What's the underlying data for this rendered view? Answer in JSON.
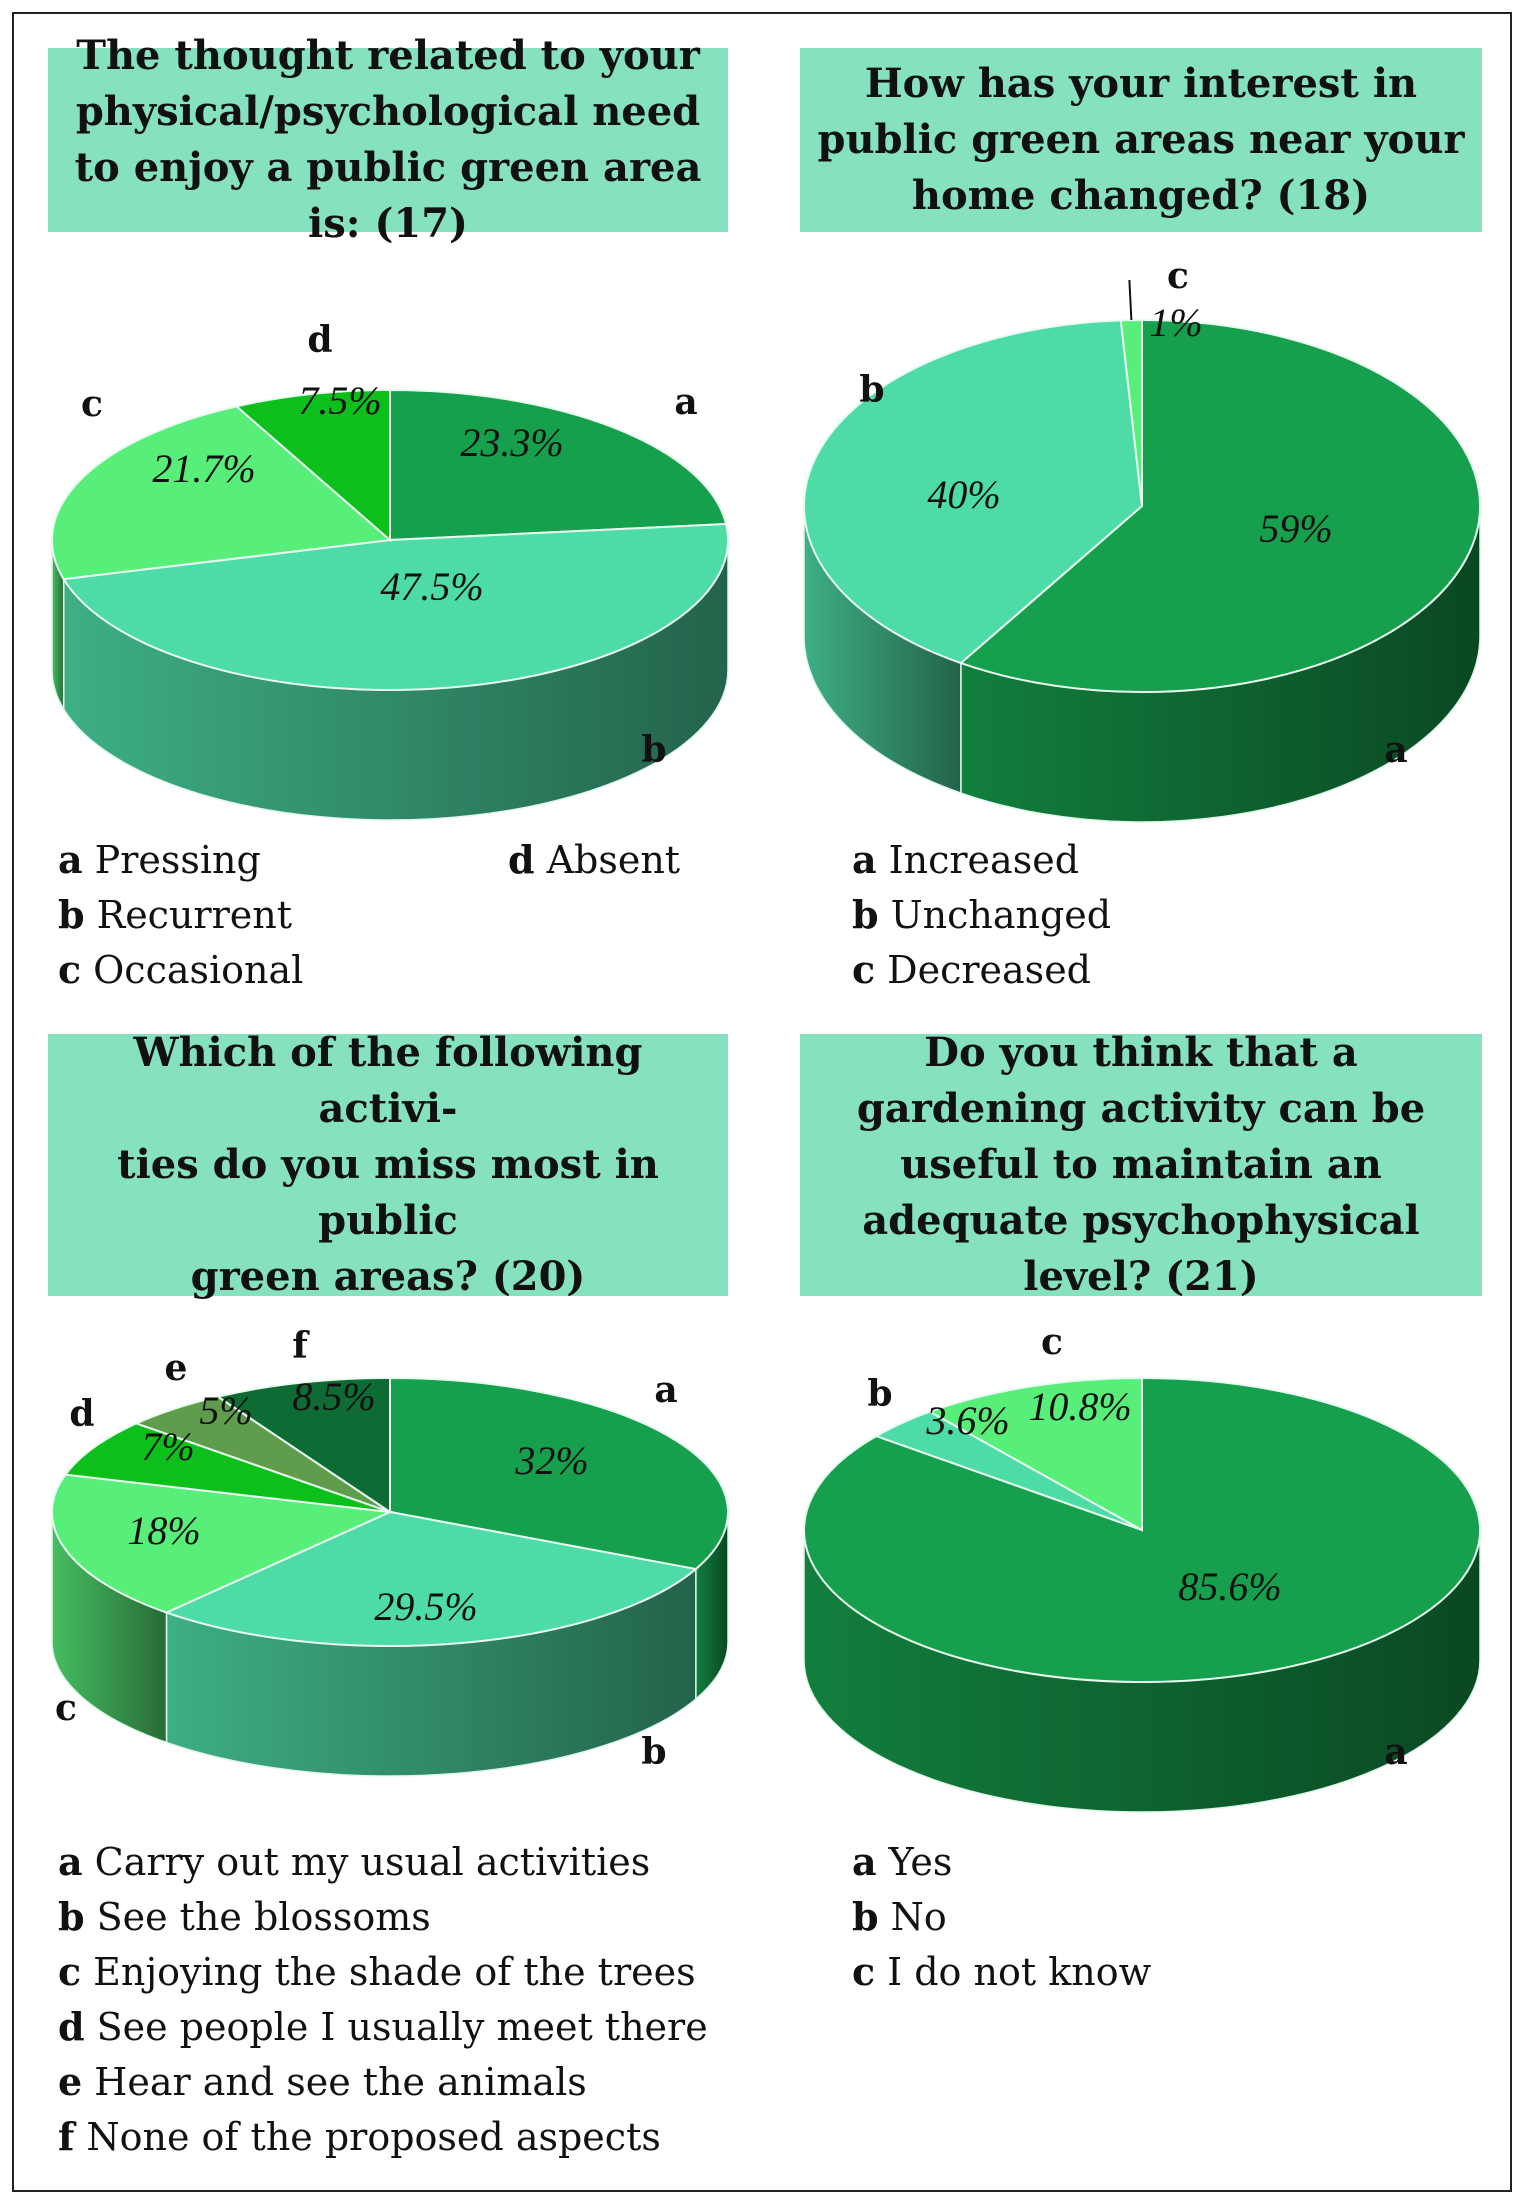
{
  "chart_data": [
    {
      "type": "pie",
      "title": "The thought related to your physical/psychological need to enjoy a public green area is: (17)",
      "slices": [
        {
          "key": "a",
          "label": "Pressing",
          "value": 23.3,
          "display": "23.3%",
          "color": "#169f4c"
        },
        {
          "key": "b",
          "label": "Recurrent",
          "value": 47.5,
          "display": "47.5%",
          "color": "#4ddba6"
        },
        {
          "key": "c",
          "label": "Occasional",
          "value": 21.7,
          "display": "21.7%",
          "color": "#57ee79"
        },
        {
          "key": "d",
          "label": "Absent",
          "value": 7.5,
          "display": "7.5%",
          "color": "#0dbf1b"
        }
      ]
    },
    {
      "type": "pie",
      "title": "How has your interest in public green areas near your home changed? (18)",
      "slices": [
        {
          "key": "a",
          "label": "Increased",
          "value": 59,
          "display": "59%",
          "color": "#169f4c"
        },
        {
          "key": "b",
          "label": "Unchanged",
          "value": 40,
          "display": "40%",
          "color": "#4ddba6"
        },
        {
          "key": "c",
          "label": "Decreased",
          "value": 1,
          "display": "1%",
          "color": "#57ee79"
        }
      ]
    },
    {
      "type": "pie",
      "title": "Which of the following activities do you miss most in public green areas? (20)",
      "title_lines": [
        "Which of the following activi-",
        "ties do you miss most in public",
        "green areas? (20)"
      ],
      "slices": [
        {
          "key": "a",
          "label": "Carry out my usual activities",
          "value": 32,
          "display": "32%",
          "color": "#169f4c"
        },
        {
          "key": "b",
          "label": "See the blossoms",
          "value": 29.5,
          "display": "29.5%",
          "color": "#4ddba6"
        },
        {
          "key": "c",
          "label": "Enjoying the shade of the trees",
          "value": 18,
          "display": "18%",
          "color": "#57ee79"
        },
        {
          "key": "d",
          "label": "See people I usually meet there",
          "value": 7,
          "display": "7%",
          "color": "#0dbf1b"
        },
        {
          "key": "e",
          "label": "Hear and see the animals",
          "value": 5,
          "display": "5%",
          "color": "#5f9d4c"
        },
        {
          "key": "f",
          "label": "None of the proposed aspects",
          "value": 8.5,
          "display": "8.5%",
          "color": "#0e6b34"
        }
      ]
    },
    {
      "type": "pie",
      "title": "Do you think that a gardening activity can be useful to maintain an adequate psychophysical level? (21)",
      "slices": [
        {
          "key": "a",
          "label": "Yes",
          "value": 85.6,
          "display": "85.6%",
          "color": "#169f4c"
        },
        {
          "key": "b",
          "label": "No",
          "value": 3.6,
          "display": "3.6%",
          "color": "#4ddba6"
        },
        {
          "key": "c",
          "label": "I do not know",
          "value": 10.8,
          "display": "10.8%",
          "color": "#57ee79"
        }
      ]
    }
  ]
}
